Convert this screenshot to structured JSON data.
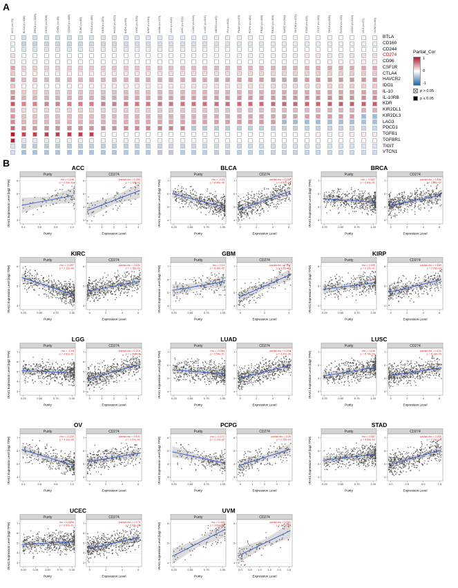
{
  "figure": {
    "panel_a_label": "A",
    "panel_b_label": "B"
  },
  "heatmap": {
    "legend_title": "Partial_Cor",
    "legend_ticks": [
      "1",
      "0",
      "-1"
    ],
    "legend_sig": [
      {
        "symbol": "crossed-square",
        "label": "p > 0.05"
      },
      {
        "symbol": "filled-square",
        "label": "p ≤ 0.05"
      }
    ],
    "genes": [
      "BTLA",
      "CD160",
      "CD244",
      "CD274",
      "CD96",
      "CSF1R",
      "CTLA4",
      "HAVCR2",
      "IDO1",
      "IL-10",
      "IL-10RB",
      "KDR",
      "KIR2DL1",
      "KIR2DL3",
      "LAG3",
      "PDCD1",
      "TGFB1",
      "TGFBR1",
      "TIGIT",
      "VTCN1"
    ],
    "highlight_gene": "CD274",
    "row_bias": [
      0.1,
      0.0,
      0.05,
      0.15,
      0.05,
      0.3,
      0.1,
      0.3,
      0.0,
      0.15,
      0.2,
      0.35,
      -0.05,
      0.0,
      0.0,
      0.1,
      0.4,
      0.3,
      0.05,
      -0.05
    ],
    "cancers": [
      "ACC (n=79)",
      "BLCA (n=408)",
      "BRCA (n=1100)",
      "CESC (n=306)",
      "CHOL (n=36)",
      "COAD (n=458)",
      "DLBC (n=48)",
      "ESCA (n=185)",
      "GBM (n=153)",
      "HNSC (n=522)",
      "KICH (n=66)",
      "KIRC (n=533)",
      "KIRP (n=290)",
      "LAML (n=173)",
      "LGG (n=516)",
      "LIHC (n=371)",
      "LUAD (n=515)",
      "LUSC (n=501)",
      "MESO (n=87)",
      "OV (n=303)",
      "PAAD (n=179)",
      "PCPG (n=181)",
      "PRAD (n=498)",
      "READ (n=166)",
      "SARC (n=260)",
      "SKCM (n=471)",
      "STAD (n=415)",
      "TGCT (n=150)",
      "THCA (n=509)",
      "THYM (n=120)",
      "UCEC (n=545)",
      "UCS (n=57)",
      "UVM (n=80)"
    ],
    "seed": 42,
    "colors": {
      "pos": "#b2182b",
      "neg": "#2166ac"
    }
  },
  "scatter": {
    "ylabel": "IRAK1 Expression Level (log2 TPM)",
    "rows": [
      [
        {
          "name": "ACC",
          "n": 79,
          "purity": {
            "header": "Purity",
            "xlabel": "Purity",
            "xticks": [
              "0.4",
              "0.6",
              "0.8",
              "1.0"
            ],
            "yticks": [
              "3",
              "4",
              "5",
              "6"
            ],
            "trend": 0.15,
            "ann": [
              "rho = 0.148",
              "p = 2.29e-01"
            ]
          },
          "cd274": {
            "header": "CD274",
            "xlabel": "Expression Level",
            "xticks": [
              "0",
              "1",
              "2",
              "3",
              "4"
            ],
            "yticks": [
              "3",
              "4",
              "5",
              "6"
            ],
            "trend": 0.3,
            "ann": [
              "partial.rho = 0.283",
              "p = 1.16e-02"
            ]
          }
        },
        {
          "name": "BLCA",
          "n": 408,
          "purity": {
            "header": "Purity",
            "xlabel": "Purity",
            "xticks": [
              "0.25",
              "0.50",
              "0.75",
              "1.00"
            ],
            "yticks": [
              "4",
              "5",
              "6",
              "7"
            ],
            "trend": -0.2,
            "ann": [
              "rho = -0.23",
              "p = 8.49e-06"
            ]
          },
          "cd274": {
            "header": "CD274",
            "xlabel": "Expression Level",
            "xticks": [
              "0",
              "2",
              "4",
              "6"
            ],
            "yticks": [
              "4",
              "5",
              "6",
              "7"
            ],
            "trend": 0.28,
            "ann": [
              "partial.rho = 0.281",
              "p = 4.52e-08"
            ]
          }
        },
        {
          "name": "BRCA",
          "n": 1100,
          "purity": {
            "header": "Purity",
            "xlabel": "Purity",
            "xticks": [
              "0.25",
              "0.50",
              "0.75",
              "1.00"
            ],
            "yticks": [
              "4",
              "5",
              "6",
              "7"
            ],
            "trend": -0.05,
            "ann": [
              "rho = -0.037",
              "p = 2.43e-01"
            ]
          },
          "cd274": {
            "header": "CD274",
            "xlabel": "Expression Level",
            "xticks": [
              "0",
              "2",
              "4",
              "6"
            ],
            "yticks": [
              "4",
              "5",
              "6",
              "7"
            ],
            "trend": 0.16,
            "ann": [
              "partial.rho = 0.162",
              "p = 2.86e-07"
            ]
          }
        }
      ],
      [
        {
          "name": "KIRC",
          "n": 533,
          "purity": {
            "header": "Purity",
            "xlabel": "Purity",
            "xticks": [
              "0.25",
              "0.50",
              "0.75",
              "1.00"
            ],
            "yticks": [
              "4",
              "5",
              "6"
            ],
            "trend": -0.26,
            "ann": [
              "rho = -0.257",
              "p = 2.11e-08"
            ]
          },
          "cd274": {
            "header": "CD274",
            "xlabel": "Expression Level",
            "xticks": [
              "0",
              "2",
              "4",
              "6"
            ],
            "yticks": [
              "4",
              "5",
              "6"
            ],
            "trend": 0.15,
            "ann": [
              "partial.rho = 0.151",
              "p = 1.15e-03"
            ]
          }
        },
        {
          "name": "GBM",
          "n": 153,
          "purity": {
            "header": "Purity",
            "xlabel": "Purity",
            "xticks": [
              "0.25",
              "0.50",
              "0.75",
              "1.00"
            ],
            "yticks": [
              "4",
              "5",
              "6",
              "7"
            ],
            "trend": 0.13,
            "ann": [
              "rho = 0.13",
              "p = 8.36e-02"
            ]
          },
          "cd274": {
            "header": "CD274",
            "xlabel": "Expression Level",
            "xticks": [
              "0",
              "2",
              "4"
            ],
            "yticks": [
              "4",
              "5",
              "6",
              "7"
            ],
            "trend": 0.35,
            "ann": [
              "partial.rho = 0.347",
              "p = 3.25e-06"
            ]
          }
        },
        {
          "name": "KIRP",
          "n": 290,
          "purity": {
            "header": "Purity",
            "xlabel": "Purity",
            "xticks": [
              "0.25",
              "0.50",
              "0.75",
              "1.00"
            ],
            "yticks": [
              "4",
              "5",
              "6"
            ],
            "trend": 0.1,
            "ann": [
              "rho = 0.099",
              "p = 2.17e-01"
            ]
          },
          "cd274": {
            "header": "CD274",
            "xlabel": "Expression Level",
            "xticks": [
              "0",
              "2",
              "4",
              "6"
            ],
            "yticks": [
              "4",
              "5",
              "6"
            ],
            "trend": 0.19,
            "ann": [
              "partial.rho = 0.189",
              "p = 2.28e-03"
            ]
          }
        }
      ],
      [
        {
          "name": "LGG",
          "n": 516,
          "purity": {
            "header": "Purity",
            "xlabel": "Purity",
            "xticks": [
              "0.25",
              "0.50",
              "0.75",
              "1.00"
            ],
            "yticks": [
              "3",
              "4",
              "5",
              "6",
              "7"
            ],
            "trend": -0.03,
            "ann": [
              "rho = -0.03",
              "p = 4.82e-01"
            ]
          },
          "cd274": {
            "header": "CD274",
            "xlabel": "Expression Level",
            "xticks": [
              "0",
              "1",
              "2",
              "3",
              "4"
            ],
            "yticks": [
              "3",
              "4",
              "5",
              "6",
              "7"
            ],
            "trend": 0.22,
            "ann": [
              "partial.rho = 0.218",
              "p = 1.40e-06"
            ]
          }
        },
        {
          "name": "LUAD",
          "n": 515,
          "purity": {
            "header": "Purity",
            "xlabel": "Purity",
            "xticks": [
              "0.25",
              "0.50",
              "0.75",
              "1.00"
            ],
            "yticks": [
              "4",
              "5",
              "6",
              "7"
            ],
            "trend": -0.06,
            "ann": [
              "rho = -0.064",
              "p = 2.54e-01"
            ]
          },
          "cd274": {
            "header": "CD274",
            "xlabel": "Expression Level",
            "xticks": [
              "0",
              "2",
              "4",
              "6"
            ],
            "yticks": [
              "4",
              "5",
              "6",
              "7"
            ],
            "trend": 0.2,
            "ann": [
              "partial.rho = 0.204",
              "p = 4.47e-06"
            ]
          }
        },
        {
          "name": "LUSC",
          "n": 501,
          "purity": {
            "header": "Purity",
            "xlabel": "Purity",
            "xticks": [
              "0.25",
              "0.50",
              "0.75",
              "1.00"
            ],
            "yticks": [
              "4",
              "5",
              "6",
              "7"
            ],
            "trend": 0.13,
            "ann": [
              "rho = 0.126",
              "p = 5.74e-03"
            ]
          },
          "cd274": {
            "header": "CD274",
            "xlabel": "Expression Level",
            "xticks": [
              "0",
              "2",
              "4",
              "6"
            ],
            "yticks": [
              "4",
              "5",
              "6",
              "7"
            ],
            "trend": 0.12,
            "ann": [
              "partial.rho = 0.121",
              "p = 8.13e-03"
            ]
          }
        }
      ],
      [
        {
          "name": "OV",
          "n": 303,
          "purity": {
            "header": "Purity",
            "xlabel": "Purity",
            "xticks": [
              "0.4",
              "0.6",
              "0.8",
              "1.0"
            ],
            "yticks": [
              "4",
              "5",
              "6",
              "7"
            ],
            "trend": -0.24,
            "ann": [
              "rho = -0.239",
              "p = 4.11e-05"
            ]
          },
          "cd274": {
            "header": "CD274",
            "xlabel": "Expression Level",
            "xticks": [
              "0",
              "2",
              "4",
              "6"
            ],
            "yticks": [
              "4",
              "5",
              "6",
              "7"
            ],
            "trend": 0.13,
            "ann": [
              "partial.rho = 0.131",
              "p = 2.07e-02"
            ]
          }
        },
        {
          "name": "PCPG",
          "n": 181,
          "purity": {
            "header": "Purity",
            "xlabel": "Purity",
            "xticks": [
              "0.25",
              "0.50",
              "0.75",
              "1.00"
            ],
            "yticks": [
              "3",
              "4",
              "5",
              "6"
            ],
            "trend": -0.17,
            "ann": [
              "rho = -0.172",
              "p = 2.17e-02"
            ]
          },
          "cd274": {
            "header": "CD274",
            "xlabel": "Expression Level",
            "xticks": [
              "0",
              "1",
              "2",
              "3",
              "4"
            ],
            "yticks": [
              "3",
              "4",
              "5",
              "6"
            ],
            "trend": 0.25,
            "ann": [
              "partial.rho = 0.25",
              "p = 2.75e-03"
            ]
          }
        },
        {
          "name": "STAD",
          "n": 415,
          "purity": {
            "header": "Purity",
            "xlabel": "Purity",
            "xticks": [
              "0.25",
              "0.50",
              "0.75",
              "1.00"
            ],
            "yticks": [
              "4",
              "5",
              "6",
              "7"
            ],
            "trend": 0.09,
            "ann": [
              "rho = 0.087",
              "p = 9.06e-02"
            ]
          },
          "cd274": {
            "header": "CD274",
            "xlabel": "Expression Level",
            "xticks": [
              "0.0",
              "2.5",
              "5.0",
              "7.5"
            ],
            "yticks": [
              "4",
              "5",
              "6",
              "7"
            ],
            "trend": 0.22,
            "ann": [
              "partial.rho = 0.216",
              "p = 2.28e-05"
            ]
          }
        }
      ],
      [
        {
          "name": "UCEC",
          "n": 545,
          "purity": {
            "header": "Purity",
            "xlabel": "Purity",
            "xticks": [
              "0.00",
              "0.25",
              "0.50",
              "0.75",
              "1.00"
            ],
            "yticks": [
              "3",
              "4",
              "5",
              "6",
              "7"
            ],
            "trend": 0.05,
            "ann": [
              "rho = 0.0496",
              "p = 3.02e-01"
            ]
          },
          "cd274": {
            "header": "CD274",
            "xlabel": "Expression Level",
            "xticks": [
              "0",
              "2",
              "4",
              "6"
            ],
            "yticks": [
              "3",
              "4",
              "5",
              "6",
              "7"
            ],
            "trend": 0.17,
            "ann": [
              "partial.rho = 0.173",
              "p = 2.97e-05"
            ]
          }
        },
        {
          "name": "UVM",
          "n": 80,
          "purity": {
            "header": "Purity",
            "xlabel": "Purity",
            "xticks": [
              "0.25",
              "0.50",
              "0.75",
              "1.00"
            ],
            "yticks": [
              "4",
              "5",
              "6"
            ],
            "trend": 0.4,
            "ann": [
              "rho = 0.405",
              "p = 3.61e-04"
            ]
          },
          "cd274": {
            "header": "CD274",
            "xlabel": "Expression Level",
            "xticks": [
              "0.0",
              "0.5",
              "1.0",
              "1.5",
              "2.0",
              "2.5"
            ],
            "yticks": [
              "4",
              "5",
              "6"
            ],
            "trend": 0.38,
            "ann": [
              "partial.rho = 0.382",
              "p = 1.21e-03"
            ]
          }
        }
      ]
    ]
  }
}
